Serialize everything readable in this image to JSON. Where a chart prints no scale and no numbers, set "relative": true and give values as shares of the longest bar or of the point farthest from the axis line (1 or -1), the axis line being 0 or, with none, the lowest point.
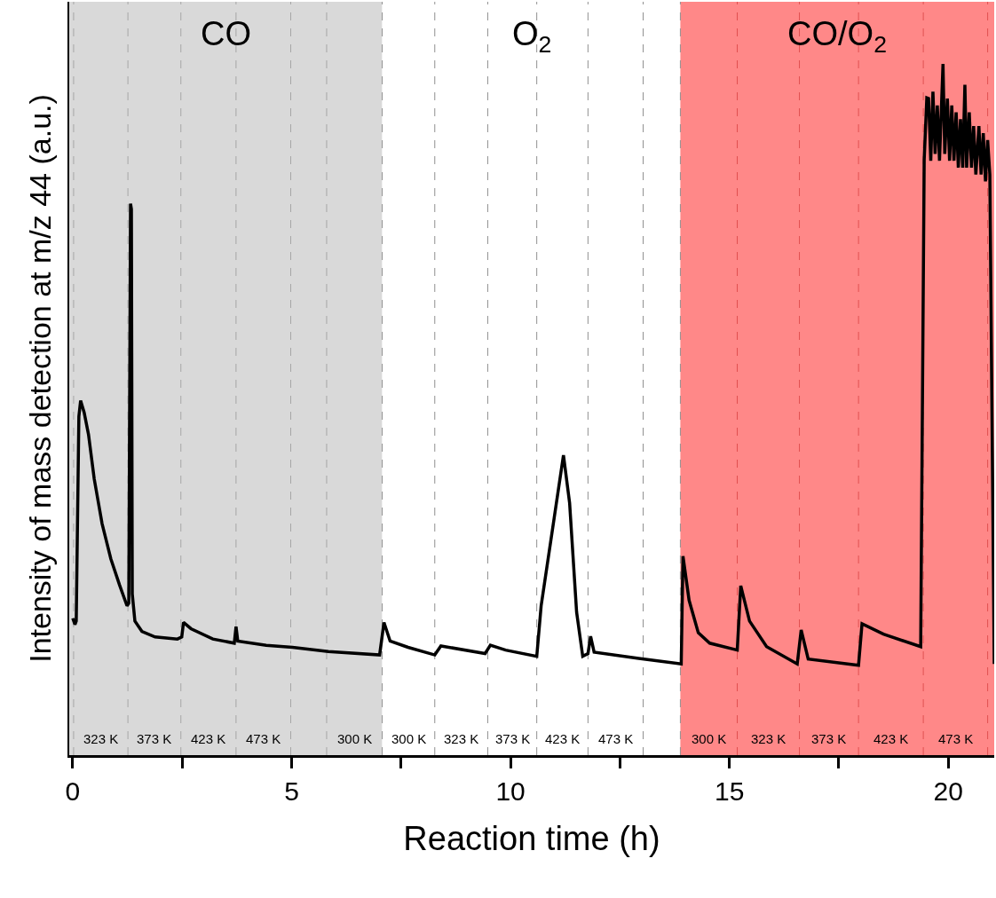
{
  "chart_data": {
    "type": "line",
    "relative": true,
    "xlabel": "Reaction time (h)",
    "ylabel": "Intensity of mass detection at m/z 44 (a.u.)",
    "xlim": [
      -0.08,
      21.05
    ],
    "xticks": [
      0,
      {
        "value": 2.5,
        "label": null
      },
      5,
      {
        "value": 7.5,
        "label": null
      },
      10,
      {
        "value": 12.5,
        "label": null
      },
      15,
      {
        "value": 17.5,
        "label": null
      },
      20
    ],
    "grid": false,
    "marker": "none",
    "line_style": "solid",
    "series": [
      {
        "color": "#000000",
        "x": [
          0.0,
          0.05,
          0.08,
          0.14,
          0.18,
          0.26,
          0.36,
          0.49,
          0.67,
          0.87,
          1.07,
          1.24,
          1.28,
          1.32,
          1.34,
          1.36,
          1.42,
          1.58,
          1.88,
          2.39,
          2.49,
          2.53,
          2.7,
          3.2,
          3.69,
          3.73,
          3.77,
          4.42,
          5.02,
          5.84,
          7.01,
          7.11,
          7.25,
          7.66,
          8.27,
          8.41,
          9.42,
          9.54,
          9.89,
          10.6,
          10.7,
          11.0,
          11.21,
          11.35,
          11.51,
          11.65,
          11.77,
          11.83,
          11.91,
          12.93,
          13.9,
          13.94,
          14.08,
          14.29,
          14.55,
          15.18,
          15.26,
          15.46,
          15.85,
          16.55,
          16.64,
          16.8,
          17.95,
          18.03,
          18.52,
          19.37,
          19.45,
          19.51,
          19.55,
          19.6,
          19.65,
          19.7,
          19.75,
          19.8,
          19.88,
          19.92,
          19.98,
          20.03,
          20.08,
          20.13,
          20.18,
          20.23,
          20.28,
          20.33,
          20.38,
          20.42,
          20.48,
          20.53,
          20.58,
          20.63,
          20.7,
          20.75,
          20.8,
          20.85,
          20.9,
          20.95,
          21.05
        ],
        "values": [
          0.198,
          0.189,
          0.194,
          0.49,
          0.513,
          0.496,
          0.464,
          0.4,
          0.335,
          0.284,
          0.246,
          0.216,
          0.22,
          0.798,
          0.79,
          0.233,
          0.194,
          0.179,
          0.171,
          0.168,
          0.171,
          0.192,
          0.183,
          0.168,
          0.162,
          0.186,
          0.165,
          0.159,
          0.156,
          0.15,
          0.145,
          0.192,
          0.165,
          0.156,
          0.145,
          0.158,
          0.147,
          0.159,
          0.152,
          0.143,
          0.216,
          0.344,
          0.434,
          0.365,
          0.207,
          0.143,
          0.147,
          0.172,
          0.149,
          0.14,
          0.132,
          0.288,
          0.224,
          0.177,
          0.162,
          0.152,
          0.245,
          0.194,
          0.157,
          0.132,
          0.181,
          0.139,
          0.13,
          0.19,
          0.175,
          0.157,
          0.861,
          0.951,
          0.95,
          0.86,
          0.96,
          0.87,
          0.94,
          0.86,
          1.0,
          0.87,
          0.95,
          0.86,
          0.94,
          0.86,
          0.93,
          0.85,
          0.92,
          0.85,
          0.97,
          0.85,
          0.93,
          0.85,
          0.91,
          0.84,
          0.91,
          0.84,
          0.9,
          0.83,
          0.89,
          0.84,
          0.132
        ]
      }
    ],
    "bands": [
      {
        "axis": "x",
        "from": -0.08,
        "to": 7.07,
        "label": "CO",
        "color": "#d9d9d9"
      },
      {
        "axis": "x",
        "from": 7.07,
        "to": 13.88,
        "label": "O$_{2}$",
        "color": "#ffffff"
      },
      {
        "axis": "x",
        "from": 13.88,
        "to": 21.05,
        "label": "CO/O$_{2}$",
        "color": "#ff8888"
      }
    ],
    "ref_lines": [
      {
        "axis": "x",
        "value": 0.02,
        "label": "323 K",
        "color": "#a6a6a6",
        "line_style": "dashed"
      },
      {
        "axis": "x",
        "value": 1.26,
        "label": "373 K",
        "color": "#a6a6a6",
        "line_style": "dashed"
      },
      {
        "axis": "x",
        "value": 2.47,
        "label": "423 K",
        "color": "#a6a6a6",
        "line_style": "dashed"
      },
      {
        "axis": "x",
        "value": 3.73,
        "label": "473 K",
        "color": "#a6a6a6",
        "line_style": "dashed"
      },
      {
        "axis": "x",
        "value": 4.98,
        "label": null,
        "color": "#a6a6a6",
        "line_style": "dashed"
      },
      {
        "axis": "x",
        "value": 5.8,
        "label": "300 K",
        "color": "#a6a6a6",
        "line_style": "dashed"
      },
      {
        "axis": "x",
        "value": 7.07,
        "label": "300 K",
        "color": "#909090",
        "line_style": "dashed"
      },
      {
        "axis": "x",
        "value": 8.27,
        "label": "323 K",
        "color": "#909090",
        "line_style": "dashed"
      },
      {
        "axis": "x",
        "value": 9.48,
        "label": "373 K",
        "color": "#909090",
        "line_style": "dashed"
      },
      {
        "axis": "x",
        "value": 10.6,
        "label": "423 K",
        "color": "#909090",
        "line_style": "dashed"
      },
      {
        "axis": "x",
        "value": 11.77,
        "label": "473 K",
        "color": "#909090",
        "line_style": "dashed"
      },
      {
        "axis": "x",
        "value": 13.03,
        "label": null,
        "color": "#909090",
        "line_style": "dashed"
      },
      {
        "axis": "x",
        "value": 13.88,
        "label": "300 K",
        "color": "#909090",
        "line_style": "dashed"
      },
      {
        "axis": "x",
        "value": 15.18,
        "label": "323 K",
        "color": "#e05050",
        "line_style": "dashed"
      },
      {
        "axis": "x",
        "value": 16.6,
        "label": "373 K",
        "color": "#e05050",
        "line_style": "dashed"
      },
      {
        "axis": "x",
        "value": 17.95,
        "label": "423 K",
        "color": "#e05050",
        "line_style": "dashed"
      },
      {
        "axis": "x",
        "value": 19.43,
        "label": "473 K",
        "color": "#e05050",
        "line_style": "dashed"
      },
      {
        "axis": "x",
        "value": 20.9,
        "label": null,
        "color": "#e05050",
        "line_style": "dashed"
      }
    ]
  }
}
